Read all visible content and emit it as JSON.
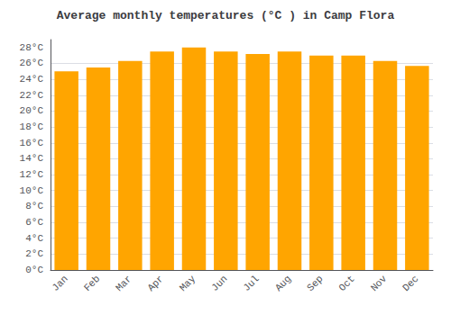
{
  "chart_data": {
    "type": "bar",
    "title": "Average monthly temperatures (°C ) in Camp Flora",
    "categories": [
      "Jan",
      "Feb",
      "Mar",
      "Apr",
      "May",
      "Jun",
      "Jul",
      "Aug",
      "Sep",
      "Oct",
      "Nov",
      "Dec"
    ],
    "values": [
      25.0,
      25.5,
      26.3,
      27.5,
      28.0,
      27.5,
      27.2,
      27.5,
      27.0,
      27.0,
      26.3,
      25.7
    ],
    "color": "#FFA500",
    "ylim": [
      0,
      29
    ],
    "yticks": [
      {
        "value": 0,
        "label": "0°C"
      },
      {
        "value": 2,
        "label": "2°C"
      },
      {
        "value": 4,
        "label": "4°C"
      },
      {
        "value": 6,
        "label": "6°C"
      },
      {
        "value": 8,
        "label": "8°C"
      },
      {
        "value": 10,
        "label": "10°C"
      },
      {
        "value": 12,
        "label": "12°C"
      },
      {
        "value": 14,
        "label": "14°C"
      },
      {
        "value": 16,
        "label": "16°C"
      },
      {
        "value": 18,
        "label": "18°C"
      },
      {
        "value": 20,
        "label": "20°C"
      },
      {
        "value": 22,
        "label": "22°C"
      },
      {
        "value": 24,
        "label": "24°C"
      },
      {
        "value": 26,
        "label": "26°C"
      },
      {
        "value": 28,
        "label": "28°C"
      }
    ],
    "grid": true
  }
}
